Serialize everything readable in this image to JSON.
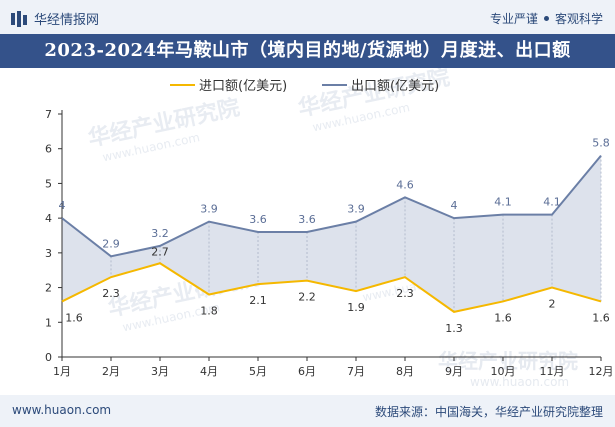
{
  "header": {
    "logo_text": "华经情报网",
    "tagline_left": "专业严谨",
    "tagline_right": "客观科学",
    "brand_color": "#2c4a7a",
    "title_bg": "#34528a"
  },
  "title": "2023-2024年马鞍山市（境内目的地/货源地）月度进、出口额",
  "footer": {
    "website": "www.huaon.com",
    "source": "数据来源：中国海关，华经产业研究院整理"
  },
  "watermark": {
    "text_cn": "华经产业研究院",
    "text_url": "www.huaon.com"
  },
  "chart_data": {
    "type": "area",
    "title": "2023-2024年马鞍山市（境内目的地/货源地）月度进、出口额",
    "categories": [
      "1月",
      "2月",
      "3月",
      "4月",
      "5月",
      "6月",
      "7月",
      "8月",
      "9月",
      "10月",
      "11月",
      "12月"
    ],
    "series": [
      {
        "name": "进口额(亿美元)",
        "values": [
          1.6,
          2.3,
          2.7,
          1.8,
          2.1,
          2.2,
          1.9,
          2.3,
          1.3,
          1.6,
          2,
          1.6
        ],
        "color": "#f5b800"
      },
      {
        "name": "出口额(亿美元)",
        "values": [
          4,
          2.9,
          3.2,
          3.9,
          3.6,
          3.6,
          3.9,
          4.6,
          4,
          4.1,
          4.1,
          5.8
        ],
        "color": "#6b7fa6"
      }
    ],
    "value_labels": {
      "import": [
        "1.6",
        "2.3",
        "2.7",
        "1.8",
        "2.1",
        "2.2",
        "1.9",
        "2.3",
        "1.3",
        "1.6",
        "2",
        "1.6"
      ],
      "export": [
        "4",
        "2.9",
        "3.2",
        "3.9",
        "3.6",
        "3.6",
        "3.9",
        "4.6",
        "4",
        "4.1",
        "4.1",
        "5.8"
      ]
    },
    "ylim": [
      0,
      7
    ],
    "yticks": [
      "0",
      "1",
      "2",
      "3",
      "4",
      "5",
      "6",
      "7"
    ],
    "fill_color": "#dde2ec",
    "legend_position": "top-center",
    "grid": false
  }
}
